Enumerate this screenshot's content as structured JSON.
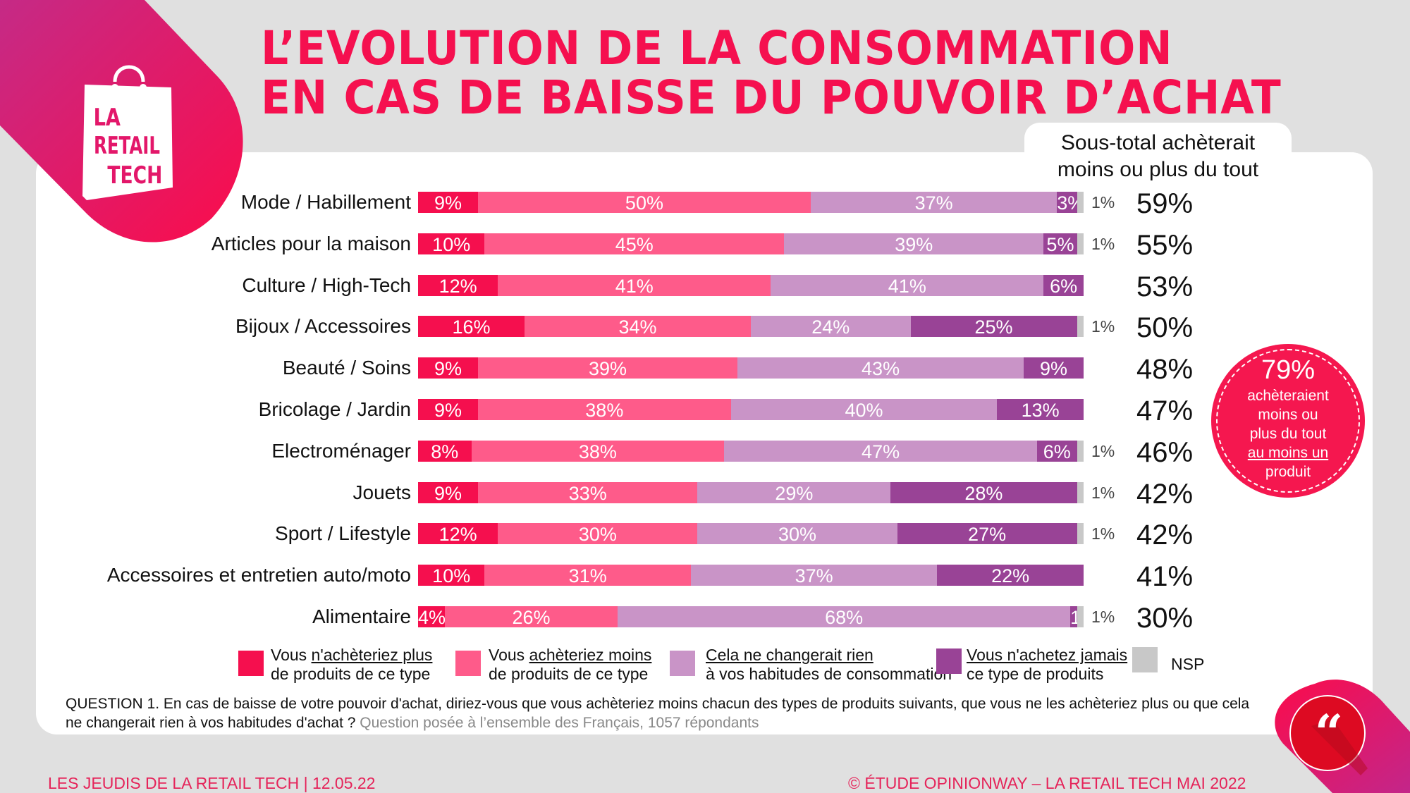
{
  "title": {
    "line1": "L’EVOLUTION DE LA CONSOMMATION",
    "line2": "EN CAS DE BAISSE DU POUVOIR D’ACHAT"
  },
  "logo": {
    "line1": "LA",
    "line2": "RETAIL",
    "line3": "TECH"
  },
  "subtotal_header": {
    "line1": "Sous-total achèterait",
    "line2": "moins ou plus du tout"
  },
  "colors": {
    "plus": "#f50f4e",
    "moins": "#fe5b8a",
    "rien": "#c994c7",
    "jamais": "#994396",
    "nsp": "#c8c8c8",
    "brand": "#f5104f"
  },
  "chart_data": {
    "type": "bar",
    "orientation": "horizontal-stacked-100",
    "title": "L’EVOLUTION DE LA CONSOMMATION EN CAS DE BAISSE DU POUVOIR D’ACHAT",
    "xlabel": "",
    "ylabel": "",
    "xlim": [
      0,
      100
    ],
    "unit": "%",
    "categories": [
      "Mode / Habillement",
      "Articles pour la maison",
      "Culture / High-Tech",
      "Bijoux / Accessoires",
      "Beauté / Soins",
      "Bricolage / Jardin",
      "Electroménager",
      "Jouets",
      "Sport / Lifestyle",
      "Accessoires et entretien auto/moto",
      "Alimentaire"
    ],
    "series": [
      {
        "name": "Vous n'achèteriez plus de produits de ce type",
        "key": "plus",
        "values": [
          9,
          10,
          12,
          16,
          9,
          9,
          8,
          9,
          12,
          10,
          4
        ]
      },
      {
        "name": "Vous achèteriez moins de produits de ce type",
        "key": "moins",
        "values": [
          50,
          45,
          41,
          34,
          39,
          38,
          38,
          33,
          30,
          31,
          26
        ]
      },
      {
        "name": "Cela ne changerait rien à vos habitudes de consommation",
        "key": "rien",
        "values": [
          37,
          39,
          41,
          24,
          43,
          40,
          47,
          29,
          30,
          37,
          68
        ]
      },
      {
        "name": "Vous n'achetez jamais ce type de produits",
        "key": "jamais",
        "values": [
          3,
          5,
          6,
          25,
          9,
          13,
          6,
          28,
          27,
          22,
          1
        ]
      },
      {
        "name": "NSP",
        "key": "nsp",
        "values": [
          1,
          1,
          0,
          1,
          0,
          0,
          1,
          1,
          1,
          0,
          1
        ]
      }
    ],
    "nsp_labels": [
      "1%",
      "1%",
      "",
      "1%",
      "",
      "",
      "1%",
      "1%",
      "1%",
      "",
      "1%"
    ],
    "subtotals": [
      "59%",
      "55%",
      "53%",
      "50%",
      "48%",
      "47%",
      "46%",
      "42%",
      "42%",
      "41%",
      "30%"
    ],
    "legend_position": "bottom"
  },
  "legend": [
    {
      "key": "plus",
      "pre": "Vous ",
      "underlined": "n'achèteriez plus",
      "line2": "de produits de ce type"
    },
    {
      "key": "moins",
      "pre": "Vous ",
      "underlined": "achèteriez moins",
      "line2": "de produits de ce type"
    },
    {
      "key": "rien",
      "pre": "",
      "underlined": "Cela ne changerait rien",
      "line2": "à vos habitudes de consommation"
    },
    {
      "key": "jamais",
      "pre": "",
      "underlined": "Vous n'achetez jamais",
      "line2": "ce type de produits"
    },
    {
      "key": "nsp",
      "pre": "NSP",
      "underlined": "",
      "line2": ""
    }
  ],
  "badge": {
    "value": "79%",
    "line1": "achèteraient",
    "line2": "moins ou",
    "line3": "plus du tout",
    "line4": "au moins un",
    "line5": "produit"
  },
  "question": {
    "text": "QUESTION 1. En cas de baisse de votre pouvoir d'achat, diriez-vous que vous achèteriez moins chacun des types de produits suivants, que vous ne les achèteriez plus ou que cela ne changerait rien à vos habitudes d'achat ? ",
    "note": "Question posée à l’ensemble des Français, 1057 répondants"
  },
  "footer": {
    "left": "LES JEUDIS DE LA RETAIL TECH | 12.05.22",
    "right": "© ÉTUDE OPINIONWAY – LA RETAIL TECH MAI 2022"
  },
  "quote_icon": "quote-icon"
}
